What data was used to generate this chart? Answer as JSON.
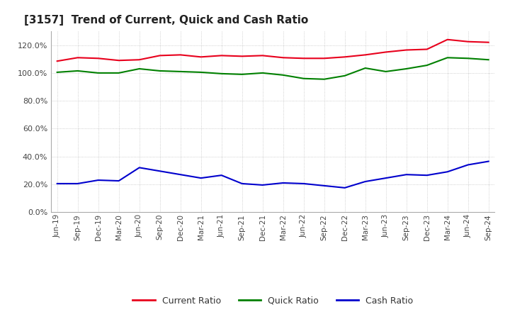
{
  "title": "[3157]  Trend of Current, Quick and Cash Ratio",
  "x_labels": [
    "Jun-19",
    "Sep-19",
    "Dec-19",
    "Mar-20",
    "Jun-20",
    "Sep-20",
    "Dec-20",
    "Mar-21",
    "Jun-21",
    "Sep-21",
    "Dec-21",
    "Mar-22",
    "Jun-22",
    "Sep-22",
    "Dec-22",
    "Mar-23",
    "Jun-23",
    "Sep-23",
    "Dec-23",
    "Mar-24",
    "Jun-24",
    "Sep-24"
  ],
  "current_ratio": [
    108.5,
    111.0,
    110.5,
    109.0,
    109.5,
    112.5,
    113.0,
    111.5,
    112.5,
    112.0,
    112.5,
    111.0,
    110.5,
    110.5,
    111.5,
    113.0,
    115.0,
    116.5,
    117.0,
    124.0,
    122.5,
    122.0
  ],
  "quick_ratio": [
    100.5,
    101.5,
    100.0,
    100.0,
    103.0,
    101.5,
    101.0,
    100.5,
    99.5,
    99.0,
    100.0,
    98.5,
    96.0,
    95.5,
    98.0,
    103.5,
    101.0,
    103.0,
    105.5,
    111.0,
    110.5,
    109.5
  ],
  "cash_ratio": [
    20.5,
    20.5,
    23.0,
    22.5,
    32.0,
    29.5,
    27.0,
    24.5,
    26.5,
    20.5,
    19.5,
    21.0,
    20.5,
    19.0,
    17.5,
    22.0,
    24.5,
    27.0,
    26.5,
    29.0,
    34.0,
    36.5
  ],
  "current_color": "#e8001c",
  "quick_color": "#008000",
  "cash_color": "#0000cd",
  "background_color": "#ffffff",
  "grid_color": "#aaaaaa",
  "ylim": [
    0,
    130
  ],
  "yticks": [
    0,
    20,
    40,
    60,
    80,
    100,
    120
  ],
  "legend_labels": [
    "Current Ratio",
    "Quick Ratio",
    "Cash Ratio"
  ]
}
